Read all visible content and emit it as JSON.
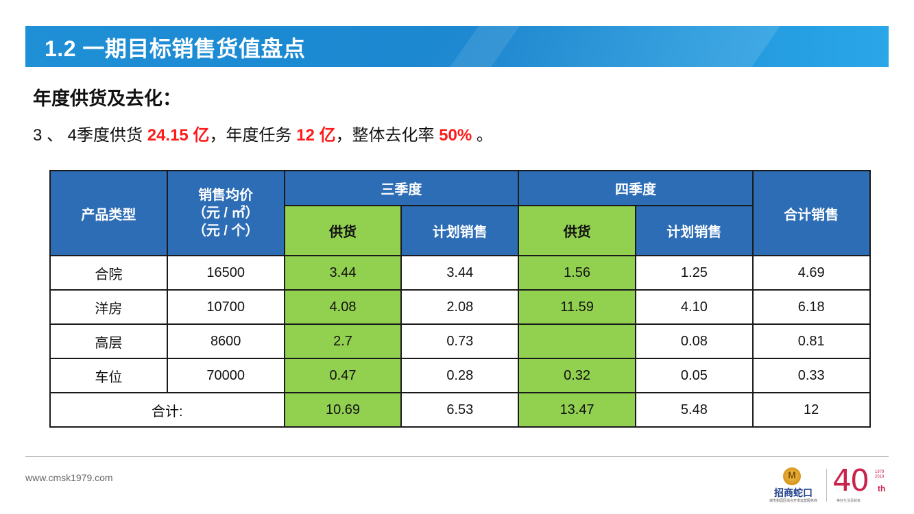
{
  "header": {
    "title": "1.2 一期目标销售货值盘点"
  },
  "subtitle": "年度供货及去化：",
  "summary": {
    "prefix": "3 、 4季度供货 ",
    "supply": "24.15 亿",
    "mid1": "，年度任务 ",
    "task": "12 亿",
    "mid2": "，整体去化率 ",
    "rate": "50%",
    "suffix": " 。"
  },
  "table": {
    "headers": {
      "product_type": "产品类型",
      "avg_price_line1": "销售均价",
      "avg_price_line2": "（元 / ㎡）",
      "avg_price_line3": "（元 / 个）",
      "q3": "三季度",
      "q4": "四季度",
      "supply": "供货",
      "planned_sales": "计划销售",
      "total_sales": "合计销售"
    },
    "rows": [
      {
        "type": "合院",
        "price": "16500",
        "q3_supply": "3.44",
        "q3_plan": "3.44",
        "q4_supply": "1.56",
        "q4_plan": "1.25",
        "total": "4.69"
      },
      {
        "type": "洋房",
        "price": "10700",
        "q3_supply": "4.08",
        "q3_plan": "2.08",
        "q4_supply": "11.59",
        "q4_plan": "4.10",
        "total": "6.18"
      },
      {
        "type": "高层",
        "price": "8600",
        "q3_supply": "2.7",
        "q3_plan": "0.73",
        "q4_supply": "",
        "q4_plan": "0.08",
        "total": "0.81"
      },
      {
        "type": "车位",
        "price": "70000",
        "q3_supply": "0.47",
        "q3_plan": "0.28",
        "q4_supply": "0.32",
        "q4_plan": "0.05",
        "total": "0.33"
      }
    ],
    "total_row": {
      "label": "合计:",
      "q3_supply": "10.69",
      "q3_plan": "6.53",
      "q4_supply": "13.47",
      "q4_plan": "5.48",
      "total": "12"
    }
  },
  "footer": {
    "website": "www.cmsk1979.com",
    "logo_mark": "M",
    "logo_name": "招商蛇口",
    "logo_tagline": "城市和园区综合开发运营服务商",
    "forty_number": "40",
    "forty_years": "1979 2019",
    "forty_suffix": "th",
    "forty_slogan": "美好生活承载者"
  },
  "colors": {
    "banner": "#1f8fd6",
    "table_header": "#2d6db5",
    "green_cell": "#92d050",
    "highlight_red": "#ff1a1a",
    "forty_red": "#c8234b"
  }
}
